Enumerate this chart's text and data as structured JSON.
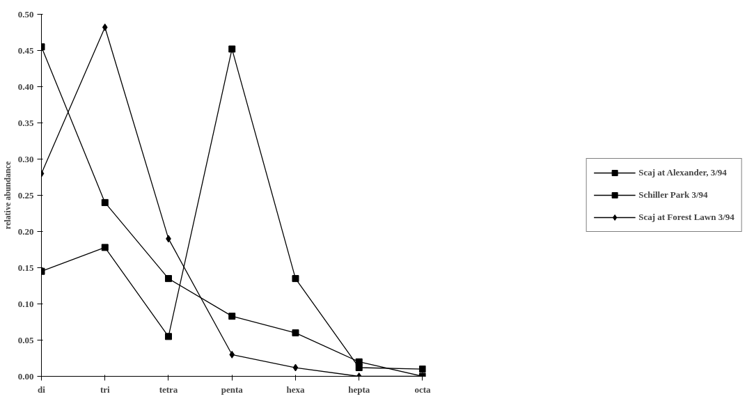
{
  "chart_data": {
    "type": "line",
    "ylabel": "relative abundance",
    "categories": [
      "di",
      "tri",
      "tetra",
      "penta",
      "hexa",
      "hepta",
      "octa"
    ],
    "series": [
      {
        "name": "Scaj at Alexander, 3/94",
        "color": "#000000",
        "marker": "square",
        "values": [
          0.455,
          0.24,
          0.135,
          0.083,
          0.06,
          0.02,
          0.0
        ]
      },
      {
        "name": "Schiller Park 3/94",
        "color": "#000000",
        "marker": "square",
        "values": [
          0.145,
          0.178,
          0.055,
          0.452,
          0.135,
          0.012,
          0.01
        ]
      },
      {
        "name": "Scaj at Forest Lawn 3/94",
        "color": "#000000",
        "marker": "diamond",
        "values": [
          0.28,
          0.482,
          0.19,
          0.03,
          0.012,
          0.0,
          0.0
        ]
      }
    ],
    "ylim": [
      0,
      0.5
    ],
    "yticks": [
      {
        "value": 0,
        "label": "0.00"
      },
      {
        "value": 0.05,
        "label": "0.05"
      },
      {
        "value": 0.1,
        "label": "0.10"
      },
      {
        "value": 0.15,
        "label": "0.15"
      },
      {
        "value": 0.2,
        "label": "0.20"
      },
      {
        "value": 0.25,
        "label": "0.25"
      },
      {
        "value": 0.3,
        "label": "0.30"
      },
      {
        "value": 0.35,
        "label": "0.35"
      },
      {
        "value": 0.4,
        "label": "0.40"
      },
      {
        "value": 0.45,
        "label": "0.45"
      },
      {
        "value": 0.5,
        "label": "0.50"
      }
    ],
    "grid": false,
    "legend": "right"
  }
}
